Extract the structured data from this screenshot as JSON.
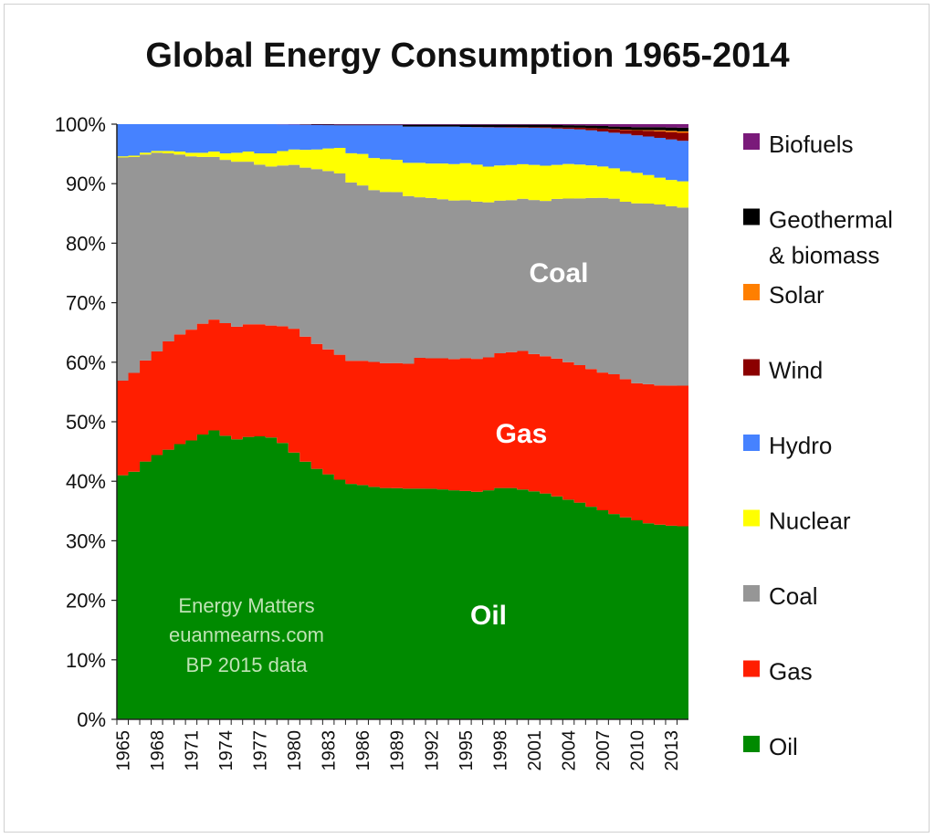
{
  "chart_data": {
    "type": "area",
    "stacked": true,
    "normalized": true,
    "title": "Global Energy Consumption 1965-2014",
    "xlabel": "",
    "ylabel": "",
    "ylim": [
      0,
      100
    ],
    "y_ticks": [
      "0%",
      "10%",
      "20%",
      "30%",
      "40%",
      "50%",
      "60%",
      "70%",
      "80%",
      "90%",
      "100%"
    ],
    "x_ticks": [
      "1965",
      "1968",
      "1971",
      "1974",
      "1977",
      "1980",
      "1983",
      "1986",
      "1989",
      "1992",
      "1995",
      "1998",
      "2001",
      "2004",
      "2007",
      "2010",
      "2013"
    ],
    "x": [
      1965,
      1966,
      1967,
      1968,
      1969,
      1970,
      1971,
      1972,
      1973,
      1974,
      1975,
      1976,
      1977,
      1978,
      1979,
      1980,
      1981,
      1982,
      1983,
      1984,
      1985,
      1986,
      1987,
      1988,
      1989,
      1990,
      1991,
      1992,
      1993,
      1994,
      1995,
      1996,
      1997,
      1998,
      1999,
      2000,
      2001,
      2002,
      2003,
      2004,
      2005,
      2006,
      2007,
      2008,
      2009,
      2010,
      2011,
      2012,
      2013,
      2014
    ],
    "legend_order": [
      "Biofuels",
      "Geothermal\n& biomass",
      "Solar",
      "Wind",
      "Hydro",
      "Nuclear",
      "Coal",
      "Gas",
      "Oil"
    ],
    "series": [
      {
        "name": "Oil",
        "color": "#008a00",
        "values": [
          41.0,
          41.6,
          43.3,
          44.4,
          45.3,
          46.2,
          46.8,
          47.8,
          48.5,
          47.6,
          47.0,
          47.4,
          47.5,
          47.3,
          46.4,
          44.8,
          43.3,
          42.1,
          41.2,
          40.3,
          39.6,
          39.4,
          39.1,
          38.9,
          38.8,
          38.8,
          38.8,
          38.7,
          38.6,
          38.4,
          38.3,
          38.2,
          38.4,
          38.8,
          38.8,
          38.5,
          38.2,
          37.8,
          37.4,
          36.9,
          36.4,
          35.8,
          35.2,
          34.5,
          33.9,
          33.4,
          33.0,
          32.7,
          32.5,
          32.4
        ]
      },
      {
        "name": "Gas",
        "color": "#ff1e00",
        "values": [
          15.9,
          16.6,
          17.0,
          17.4,
          18.2,
          18.4,
          18.6,
          18.6,
          18.6,
          18.9,
          18.9,
          18.9,
          18.8,
          18.8,
          19.6,
          20.8,
          21.0,
          21.0,
          21.0,
          21.0,
          20.7,
          20.9,
          21.0,
          21.0,
          21.0,
          21.0,
          22.0,
          21.9,
          22.0,
          22.0,
          22.3,
          22.3,
          22.3,
          22.6,
          22.8,
          23.2,
          23.0,
          23.0,
          23.1,
          23.1,
          23.1,
          23.2,
          23.2,
          23.5,
          23.2,
          23.0,
          23.4,
          23.4,
          23.5,
          23.6
        ]
      },
      {
        "name": "Coal",
        "color": "#969696",
        "values": [
          37.5,
          36.3,
          34.6,
          33.4,
          31.6,
          30.2,
          29.1,
          28.0,
          27.3,
          27.4,
          27.7,
          27.3,
          26.8,
          26.7,
          27.0,
          27.5,
          28.4,
          29.4,
          30.0,
          30.5,
          30.0,
          29.5,
          28.9,
          28.8,
          28.7,
          28.2,
          27.0,
          26.9,
          26.7,
          26.6,
          26.5,
          26.4,
          26.0,
          25.6,
          25.5,
          25.5,
          25.8,
          26.0,
          26.8,
          27.5,
          28.0,
          28.8,
          29.4,
          29.5,
          29.8,
          30.2,
          30.4,
          30.4,
          30.1,
          29.9
        ]
      },
      {
        "name": "Nuclear",
        "color": "#ffff00",
        "values": [
          0.2,
          0.2,
          0.3,
          0.3,
          0.4,
          0.5,
          0.6,
          0.7,
          0.9,
          1.1,
          1.5,
          1.7,
          1.9,
          2.2,
          2.4,
          2.6,
          3.0,
          3.3,
          3.8,
          4.3,
          4.9,
          5.3,
          5.4,
          5.5,
          5.4,
          5.6,
          5.8,
          5.8,
          6.0,
          6.1,
          6.2,
          6.2,
          6.0,
          5.9,
          5.9,
          5.8,
          5.9,
          5.9,
          5.7,
          5.8,
          5.7,
          5.5,
          5.3,
          5.1,
          5.1,
          5.1,
          4.8,
          4.5,
          4.4,
          4.4
        ]
      },
      {
        "name": "Hydro",
        "color": "#4682ff",
        "values": [
          5.4,
          5.3,
          4.8,
          4.5,
          4.5,
          4.6,
          4.8,
          4.8,
          4.6,
          4.9,
          4.8,
          4.6,
          4.9,
          4.9,
          4.5,
          4.2,
          4.2,
          4.1,
          3.9,
          3.8,
          4.7,
          4.8,
          5.5,
          5.7,
          5.8,
          6.1,
          6.1,
          6.2,
          6.2,
          6.3,
          6.1,
          6.3,
          6.6,
          6.4,
          6.3,
          6.1,
          6.2,
          6.3,
          6.1,
          5.9,
          5.9,
          5.9,
          5.9,
          6.0,
          6.3,
          6.3,
          6.5,
          6.7,
          6.8,
          6.8
        ]
      },
      {
        "name": "Wind",
        "color": "#8b0000",
        "values": [
          0,
          0,
          0,
          0,
          0,
          0,
          0,
          0,
          0,
          0,
          0,
          0,
          0,
          0,
          0,
          0,
          0,
          0,
          0,
          0,
          0,
          0,
          0,
          0,
          0,
          0,
          0,
          0,
          0,
          0,
          0,
          0.05,
          0.06,
          0.08,
          0.1,
          0.1,
          0.12,
          0.15,
          0.18,
          0.22,
          0.28,
          0.35,
          0.45,
          0.55,
          0.65,
          0.8,
          0.95,
          1.1,
          1.25,
          1.35
        ]
      },
      {
        "name": "Solar",
        "color": "#ff7f00",
        "values": [
          0,
          0,
          0,
          0,
          0,
          0,
          0,
          0,
          0,
          0,
          0,
          0,
          0,
          0,
          0,
          0,
          0,
          0,
          0,
          0,
          0,
          0,
          0,
          0,
          0,
          0,
          0,
          0,
          0,
          0,
          0,
          0,
          0,
          0,
          0,
          0,
          0,
          0,
          0,
          0,
          0,
          0.01,
          0.02,
          0.03,
          0.05,
          0.08,
          0.12,
          0.18,
          0.22,
          0.25
        ]
      },
      {
        "name": "Geothermal\n& biomass",
        "color": "#000000",
        "values": [
          0,
          0,
          0,
          0,
          0,
          0,
          0,
          0,
          0,
          0,
          0,
          0,
          0,
          0,
          0,
          0,
          0.05,
          0.08,
          0.1,
          0.1,
          0.1,
          0.1,
          0.1,
          0.1,
          0.1,
          0.3,
          0.3,
          0.3,
          0.3,
          0.3,
          0.35,
          0.35,
          0.35,
          0.35,
          0.35,
          0.4,
          0.4,
          0.4,
          0.4,
          0.4,
          0.4,
          0.42,
          0.45,
          0.45,
          0.47,
          0.5,
          0.5,
          0.52,
          0.55,
          0.6
        ]
      },
      {
        "name": "Biofuels",
        "color": "#7a1a7a",
        "values": [
          0,
          0,
          0,
          0,
          0,
          0,
          0,
          0,
          0,
          0,
          0,
          0,
          0,
          0,
          0.03,
          0.05,
          0.06,
          0.07,
          0.08,
          0.09,
          0.1,
          0.1,
          0.1,
          0.1,
          0.1,
          0.1,
          0.1,
          0.1,
          0.1,
          0.1,
          0.1,
          0.1,
          0.1,
          0.1,
          0.1,
          0.1,
          0.1,
          0.1,
          0.15,
          0.18,
          0.2,
          0.25,
          0.3,
          0.4,
          0.45,
          0.5,
          0.5,
          0.5,
          0.55,
          0.6
        ]
      }
    ],
    "annotations": {
      "coal": "Coal",
      "gas": "Gas",
      "oil": "Oil",
      "credit_line1": "Energy Matters",
      "credit_line2": "euanmearns.com",
      "credit_line3": "BP 2015 data"
    }
  }
}
